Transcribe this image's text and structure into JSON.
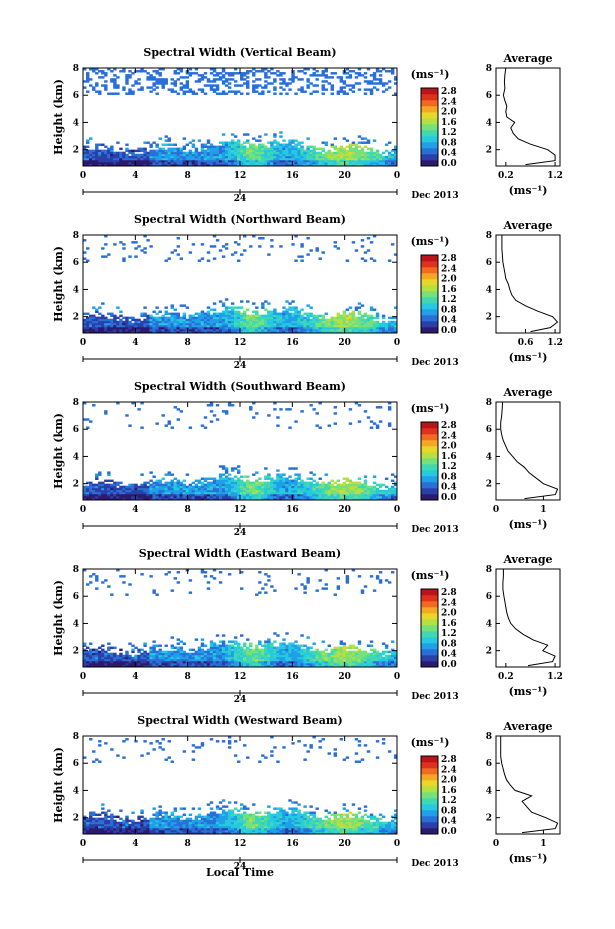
{
  "figure": {
    "x_axis_label": "Local Time",
    "date_label": "Dec 2013",
    "day_marker": "24",
    "time_ticks": [
      "0",
      "4",
      "8",
      "12",
      "16",
      "20",
      "0"
    ],
    "height_ticks": [
      "2",
      "4",
      "6",
      "8"
    ],
    "y_axis_label": "Height (km)",
    "colorbar_unit": "(ms⁻¹)",
    "colorbar_ticks": [
      "0.0",
      "0.4",
      "0.8",
      "1.2",
      "1.6",
      "2.0",
      "2.4",
      "2.8"
    ],
    "colorbar_colors": [
      "#2d1a6e",
      "#2b3fa8",
      "#2a6fd6",
      "#1fa0e8",
      "#27c9e0",
      "#3fd8b0",
      "#76e07a",
      "#b5e040",
      "#e8d628",
      "#f5a623",
      "#f06a20",
      "#e0301e",
      "#b8141a"
    ],
    "average_title": "Average",
    "average_xlabel": "(ms⁻¹)"
  },
  "chart_data": [
    {
      "type": "heatmap",
      "title": "Spectral Width (Vertical Beam)",
      "xlabel": "Local Time",
      "ylabel": "Height (km)",
      "xlim": [
        0,
        24
      ],
      "ylim": [
        0.8,
        8
      ],
      "colorbar_range": [
        0.0,
        2.8
      ],
      "average_profile": {
        "xticks": [
          "0.2",
          "1.2"
        ],
        "xlim": [
          0,
          1.3
        ],
        "height": [
          0.9,
          1.2,
          1.6,
          2.0,
          2.4,
          2.8,
          3.2,
          3.6,
          4.0,
          4.4,
          4.8,
          5.2,
          5.6,
          6.0,
          6.5,
          7.0,
          7.5,
          8.0
        ],
        "width": [
          0.6,
          1.2,
          1.2,
          1.05,
          0.7,
          0.45,
          0.35,
          0.3,
          0.38,
          0.22,
          0.2,
          0.22,
          0.18,
          0.15,
          0.18,
          0.17,
          0.18,
          0.2
        ]
      }
    },
    {
      "type": "heatmap",
      "title": "Spectral Width (Northward Beam)",
      "xlabel": "Local Time",
      "ylabel": "Height (km)",
      "xlim": [
        0,
        24
      ],
      "ylim": [
        0.8,
        8
      ],
      "colorbar_range": [
        0.0,
        2.8
      ],
      "average_profile": {
        "xticks": [
          "0.6",
          "1.2"
        ],
        "xlim": [
          0,
          1.3
        ],
        "height": [
          0.9,
          1.2,
          1.6,
          2.0,
          2.4,
          2.8,
          3.2,
          3.6,
          4.0,
          4.4,
          4.8,
          5.2,
          5.6,
          6.0,
          6.5,
          7.0,
          7.5,
          8.0
        ],
        "width": [
          0.7,
          1.1,
          1.25,
          1.15,
          0.85,
          0.6,
          0.4,
          0.32,
          0.28,
          0.25,
          0.2,
          0.18,
          0.16,
          0.14,
          0.13,
          0.12,
          0.12,
          0.12
        ]
      }
    },
    {
      "type": "heatmap",
      "title": "Spectral Width (Southward Beam)",
      "xlabel": "Local Time",
      "ylabel": "Height (km)",
      "xlim": [
        0,
        24
      ],
      "ylim": [
        0.8,
        8
      ],
      "colorbar_range": [
        0.0,
        2.8
      ],
      "average_profile": {
        "xticks": [
          "0",
          "1"
        ],
        "xlim": [
          0,
          1.35
        ],
        "height": [
          0.9,
          1.2,
          1.6,
          2.0,
          2.4,
          2.8,
          3.2,
          3.6,
          4.0,
          4.4,
          4.8,
          5.2,
          5.6,
          6.0,
          6.5,
          7.0,
          7.5,
          8.0
        ],
        "width": [
          0.6,
          1.25,
          1.3,
          1.0,
          0.85,
          0.7,
          0.6,
          0.45,
          0.35,
          0.25,
          0.2,
          0.15,
          0.12,
          0.1,
          0.1,
          0.12,
          0.13,
          0.14
        ]
      }
    },
    {
      "type": "heatmap",
      "title": "Spectral Width (Eastward Beam)",
      "xlabel": "Local Time",
      "ylabel": "Height (km)",
      "xlim": [
        0,
        24
      ],
      "ylim": [
        0.8,
        8
      ],
      "colorbar_range": [
        0.0,
        2.8
      ],
      "average_profile": {
        "xticks": [
          "0.2",
          "1.2"
        ],
        "xlim": [
          0,
          1.3
        ],
        "height": [
          0.9,
          1.2,
          1.6,
          2.0,
          2.4,
          2.8,
          3.2,
          3.6,
          4.0,
          4.4,
          4.8,
          5.2,
          5.6,
          6.0,
          6.5,
          7.0,
          7.5,
          8.0
        ],
        "width": [
          0.65,
          1.15,
          1.2,
          0.95,
          1.05,
          0.75,
          0.55,
          0.4,
          0.3,
          0.25,
          0.22,
          0.2,
          0.18,
          0.16,
          0.14,
          0.14,
          0.15,
          0.15
        ]
      }
    },
    {
      "type": "heatmap",
      "title": "Spectral Width (Westward Beam)",
      "xlabel": "Local Time",
      "ylabel": "Height (km)",
      "xlim": [
        0,
        24
      ],
      "ylim": [
        0.8,
        8
      ],
      "colorbar_range": [
        0.0,
        2.8
      ],
      "average_profile": {
        "xticks": [
          "0",
          "1"
        ],
        "xlim": [
          0,
          1.35
        ],
        "height": [
          0.9,
          1.2,
          1.6,
          2.0,
          2.4,
          2.8,
          3.2,
          3.6,
          4.0,
          4.4,
          4.8,
          5.2,
          5.6,
          6.0,
          6.5,
          7.0,
          7.5,
          8.0
        ],
        "width": [
          0.55,
          1.25,
          1.3,
          1.05,
          0.75,
          0.65,
          0.55,
          0.75,
          0.4,
          0.3,
          0.22,
          0.18,
          0.15,
          0.12,
          0.1,
          0.1,
          0.1,
          0.1
        ]
      }
    }
  ]
}
